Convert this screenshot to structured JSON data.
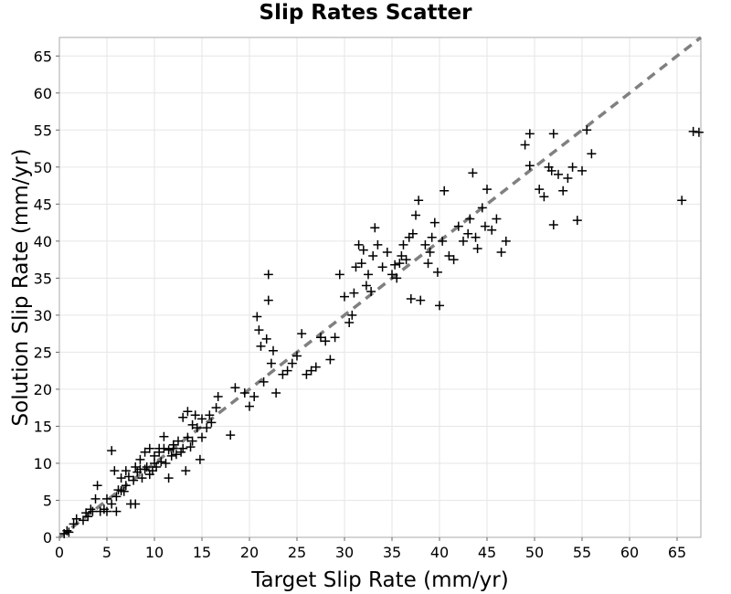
{
  "chart_data": {
    "type": "scatter",
    "title": "Slip Rates Scatter",
    "xlabel": "Target Slip Rate (mm/yr)",
    "ylabel": "Solution Slip Rate (mm/yr)",
    "xlim": [
      0,
      67.5
    ],
    "ylim": [
      0,
      67.5
    ],
    "xticks": [
      0,
      5,
      10,
      15,
      20,
      25,
      30,
      35,
      40,
      45,
      50,
      55,
      60,
      65
    ],
    "yticks": [
      0,
      5,
      10,
      15,
      20,
      25,
      30,
      35,
      40,
      45,
      50,
      55,
      60,
      65
    ],
    "grid": true,
    "marker": "+",
    "marker_color": "#000000",
    "reference_line": {
      "style": "dashed",
      "color": "#808080",
      "x": [
        0,
        67.5
      ],
      "y": [
        0,
        67.5
      ]
    },
    "points": [
      [
        0.5,
        0.5
      ],
      [
        0.8,
        0.9
      ],
      [
        1.0,
        0.7
      ],
      [
        1.5,
        1.8
      ],
      [
        1.8,
        2.5
      ],
      [
        2.5,
        2.3
      ],
      [
        2.8,
        3.3
      ],
      [
        3.0,
        2.8
      ],
      [
        3.3,
        3.8
      ],
      [
        3.5,
        3.5
      ],
      [
        3.8,
        5.2
      ],
      [
        4.0,
        7.0
      ],
      [
        4.3,
        3.5
      ],
      [
        4.7,
        3.8
      ],
      [
        5.0,
        3.5
      ],
      [
        5.0,
        5.2
      ],
      [
        5.5,
        4.5
      ],
      [
        5.5,
        11.7
      ],
      [
        5.8,
        9.0
      ],
      [
        6.0,
        5.5
      ],
      [
        6.0,
        3.5
      ],
      [
        6.2,
        6.4
      ],
      [
        6.5,
        6.3
      ],
      [
        6.5,
        8.0
      ],
      [
        6.8,
        6.2
      ],
      [
        7.0,
        7.0
      ],
      [
        7.0,
        9.0
      ],
      [
        7.3,
        8.2
      ],
      [
        7.5,
        4.5
      ],
      [
        7.8,
        7.7
      ],
      [
        8.0,
        9.5
      ],
      [
        8.0,
        4.5
      ],
      [
        8.2,
        8.8
      ],
      [
        8.5,
        9.2
      ],
      [
        8.5,
        10.5
      ],
      [
        8.7,
        8.0
      ],
      [
        9.0,
        9.2
      ],
      [
        9.0,
        11.5
      ],
      [
        9.2,
        9.5
      ],
      [
        9.5,
        8.5
      ],
      [
        9.5,
        12.0
      ],
      [
        9.8,
        9.0
      ],
      [
        10.0,
        10.0
      ],
      [
        10.0,
        11.0
      ],
      [
        10.2,
        9.5
      ],
      [
        10.5,
        12.0
      ],
      [
        10.5,
        11.5
      ],
      [
        10.7,
        10.2
      ],
      [
        11.0,
        12.0
      ],
      [
        11.0,
        13.6
      ],
      [
        11.2,
        10.0
      ],
      [
        11.5,
        11.8
      ],
      [
        11.5,
        8.0
      ],
      [
        11.8,
        11.0
      ],
      [
        12.0,
        12.0
      ],
      [
        12.0,
        12.5
      ],
      [
        12.3,
        11.2
      ],
      [
        12.5,
        13.0
      ],
      [
        12.8,
        11.5
      ],
      [
        13.0,
        12.0
      ],
      [
        13.0,
        16.2
      ],
      [
        13.3,
        9.0
      ],
      [
        13.5,
        13.5
      ],
      [
        13.5,
        17.0
      ],
      [
        13.8,
        12.2
      ],
      [
        14.0,
        15.2
      ],
      [
        14.0,
        13.0
      ],
      [
        14.3,
        16.5
      ],
      [
        14.5,
        14.8
      ],
      [
        14.8,
        10.5
      ],
      [
        15.0,
        16.0
      ],
      [
        15.0,
        13.5
      ],
      [
        15.5,
        14.8
      ],
      [
        15.8,
        16.5
      ],
      [
        16.0,
        15.5
      ],
      [
        16.5,
        17.5
      ],
      [
        16.7,
        19.0
      ],
      [
        18.0,
        13.8
      ],
      [
        18.5,
        20.2
      ],
      [
        19.5,
        19.5
      ],
      [
        20.0,
        17.7
      ],
      [
        20.5,
        19.0
      ],
      [
        20.8,
        29.8
      ],
      [
        21.0,
        28.0
      ],
      [
        21.2,
        25.8
      ],
      [
        21.5,
        21.0
      ],
      [
        21.8,
        26.8
      ],
      [
        22.0,
        32.0
      ],
      [
        22.0,
        35.5
      ],
      [
        22.3,
        23.5
      ],
      [
        22.5,
        25.2
      ],
      [
        22.8,
        19.5
      ],
      [
        23.5,
        22.0
      ],
      [
        24.0,
        22.5
      ],
      [
        24.5,
        23.5
      ],
      [
        25.0,
        24.5
      ],
      [
        25.5,
        27.5
      ],
      [
        26.0,
        22.0
      ],
      [
        26.5,
        22.5
      ],
      [
        27.0,
        23.0
      ],
      [
        27.5,
        27.0
      ],
      [
        28.0,
        26.5
      ],
      [
        28.5,
        24.0
      ],
      [
        29.0,
        27.0
      ],
      [
        29.5,
        35.5
      ],
      [
        30.0,
        32.5
      ],
      [
        30.5,
        29.0
      ],
      [
        30.8,
        30.0
      ],
      [
        31.0,
        33.0
      ],
      [
        31.2,
        36.5
      ],
      [
        31.5,
        39.5
      ],
      [
        31.8,
        37.0
      ],
      [
        32.0,
        38.8
      ],
      [
        32.3,
        34.0
      ],
      [
        32.5,
        35.5
      ],
      [
        32.8,
        33.2
      ],
      [
        33.0,
        38.0
      ],
      [
        33.2,
        41.8
      ],
      [
        33.5,
        39.5
      ],
      [
        34.0,
        36.5
      ],
      [
        34.5,
        38.5
      ],
      [
        35.0,
        35.5
      ],
      [
        35.3,
        36.8
      ],
      [
        35.5,
        35.0
      ],
      [
        35.8,
        37.0
      ],
      [
        36.0,
        38.0
      ],
      [
        36.2,
        39.5
      ],
      [
        36.5,
        37.5
      ],
      [
        36.8,
        40.5
      ],
      [
        37.0,
        32.2
      ],
      [
        37.2,
        41.0
      ],
      [
        37.5,
        43.5
      ],
      [
        37.8,
        45.5
      ],
      [
        38.0,
        32.0
      ],
      [
        38.5,
        39.5
      ],
      [
        38.8,
        37.0
      ],
      [
        39.0,
        38.5
      ],
      [
        39.2,
        40.5
      ],
      [
        39.5,
        42.5
      ],
      [
        39.8,
        35.8
      ],
      [
        40.0,
        31.3
      ],
      [
        40.3,
        40.0
      ],
      [
        40.5,
        46.8
      ],
      [
        41.0,
        38.0
      ],
      [
        41.5,
        37.5
      ],
      [
        42.0,
        42.0
      ],
      [
        42.5,
        40.0
      ],
      [
        43.0,
        41.0
      ],
      [
        43.2,
        43.0
      ],
      [
        43.5,
        49.2
      ],
      [
        43.8,
        40.5
      ],
      [
        44.0,
        39.0
      ],
      [
        44.5,
        44.5
      ],
      [
        44.8,
        42.0
      ],
      [
        45.0,
        47.0
      ],
      [
        45.5,
        41.5
      ],
      [
        46.0,
        43.0
      ],
      [
        46.5,
        38.5
      ],
      [
        47.0,
        40.0
      ],
      [
        49.0,
        53.0
      ],
      [
        49.5,
        54.5
      ],
      [
        49.5,
        50.2
      ],
      [
        50.5,
        47.0
      ],
      [
        51.0,
        46.0
      ],
      [
        51.5,
        50.0
      ],
      [
        51.8,
        49.5
      ],
      [
        52.0,
        54.5
      ],
      [
        52.0,
        42.2
      ],
      [
        52.5,
        49.0
      ],
      [
        53.0,
        46.8
      ],
      [
        53.5,
        48.5
      ],
      [
        54.0,
        50.0
      ],
      [
        54.5,
        42.8
      ],
      [
        55.0,
        49.5
      ],
      [
        55.5,
        55.0
      ],
      [
        56.0,
        51.8
      ],
      [
        65.5,
        45.5
      ],
      [
        66.7,
        54.8
      ],
      [
        67.3,
        54.7
      ]
    ]
  }
}
